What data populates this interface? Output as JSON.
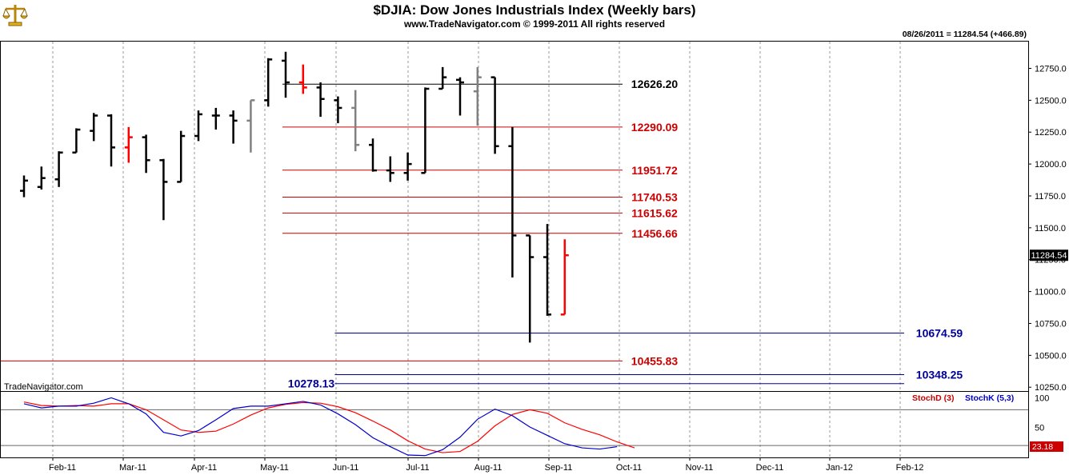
{
  "header": {
    "title": "$DJIA:  Dow Jones Industrials Index  (Weekly bars)",
    "copyright": "www.TradeNavigator.com © 1999-2011 All rights reserved",
    "status": "08/26/2011 = 11284.54 (+466.89)",
    "watermark": "TradeNavigator.com",
    "logo_icon": "scales-logo-icon"
  },
  "colors": {
    "up": "#000000",
    "down_red": "#ff0000",
    "flat_gray": "#808080",
    "resistance": "#cc0000",
    "support_blue": "#000099",
    "stoch_d": "#ff0000",
    "stoch_k": "#0000cc"
  },
  "chart_data": [
    {
      "type": "ohlc",
      "title": "$DJIA:  Dow Jones Industrials Index  (Weekly bars)",
      "x_tick_labels": [
        "Feb-11",
        "Mar-11",
        "Apr-11",
        "May-11",
        "Jun-11",
        "Jul-11",
        "Aug-11",
        "Sep-11",
        "Oct-11",
        "Nov-11",
        "Dec-11",
        "Jan-12",
        "Feb-12"
      ],
      "y_tick_labels": [
        "12750.0",
        "12500.0",
        "12250.0",
        "12000.0",
        "11750.0",
        "11500.0",
        "11250.0",
        "11000.0",
        "10750.0",
        "10500.0",
        "10250.0"
      ],
      "ylim": [
        10220,
        12960
      ],
      "last_price_label": "11284.54",
      "bars": [
        {
          "w": 0,
          "o": 11790,
          "h": 11910,
          "l": 11740,
          "c": 11870,
          "col": "up"
        },
        {
          "w": 1,
          "o": 11820,
          "h": 11980,
          "l": 11800,
          "c": 11890,
          "col": "up"
        },
        {
          "w": 2,
          "o": 11880,
          "h": 12100,
          "l": 11820,
          "c": 12090,
          "col": "up"
        },
        {
          "w": 3,
          "o": 12090,
          "h": 12280,
          "l": 12090,
          "c": 12270,
          "col": "up"
        },
        {
          "w": 4,
          "o": 12260,
          "h": 12400,
          "l": 12180,
          "c": 12380,
          "col": "up"
        },
        {
          "w": 5,
          "o": 12380,
          "h": 12390,
          "l": 11980,
          "c": 12130,
          "col": "up"
        },
        {
          "w": 6,
          "o": 12130,
          "h": 12290,
          "l": 12010,
          "c": 12210,
          "col": "down_red"
        },
        {
          "w": 7,
          "o": 12210,
          "h": 12230,
          "l": 11930,
          "c": 12030,
          "col": "up"
        },
        {
          "w": 8,
          "o": 12030,
          "h": 12040,
          "l": 11560,
          "c": 11860,
          "col": "up"
        },
        {
          "w": 9,
          "o": 11860,
          "h": 12260,
          "l": 11860,
          "c": 12220,
          "col": "up"
        },
        {
          "w": 10,
          "o": 12220,
          "h": 12420,
          "l": 12180,
          "c": 12390,
          "col": "up"
        },
        {
          "w": 11,
          "o": 12380,
          "h": 12440,
          "l": 12270,
          "c": 12380,
          "col": "up"
        },
        {
          "w": 12,
          "o": 12380,
          "h": 12420,
          "l": 12160,
          "c": 12340,
          "col": "up"
        },
        {
          "w": 13,
          "o": 12340,
          "h": 12500,
          "l": 12090,
          "c": 12500,
          "col": "flat_gray"
        },
        {
          "w": 14,
          "o": 12500,
          "h": 12830,
          "l": 12450,
          "c": 12820,
          "col": "up"
        },
        {
          "w": 15,
          "o": 12810,
          "h": 12880,
          "l": 12520,
          "c": 12640,
          "col": "up"
        },
        {
          "w": 16,
          "o": 12640,
          "h": 12780,
          "l": 12550,
          "c": 12600,
          "col": "down_red"
        },
        {
          "w": 17,
          "o": 12600,
          "h": 12640,
          "l": 12370,
          "c": 12510,
          "col": "up"
        },
        {
          "w": 18,
          "o": 12500,
          "h": 12530,
          "l": 12320,
          "c": 12440,
          "col": "up"
        },
        {
          "w": 19,
          "o": 12440,
          "h": 12580,
          "l": 12100,
          "c": 12150,
          "col": "flat_gray"
        },
        {
          "w": 20,
          "o": 12150,
          "h": 12200,
          "l": 11940,
          "c": 11950,
          "col": "up"
        },
        {
          "w": 21,
          "o": 11950,
          "h": 12060,
          "l": 11860,
          "c": 11930,
          "col": "up"
        },
        {
          "w": 22,
          "o": 11930,
          "h": 12090,
          "l": 11870,
          "c": 12000,
          "col": "up"
        },
        {
          "w": 23,
          "o": 11930,
          "h": 12600,
          "l": 11930,
          "c": 12590,
          "col": "up"
        },
        {
          "w": 24,
          "o": 12590,
          "h": 12760,
          "l": 12590,
          "c": 12680,
          "col": "up"
        },
        {
          "w": 25,
          "o": 12660,
          "h": 12680,
          "l": 12380,
          "c": 12640,
          "col": "up"
        },
        {
          "w": 26,
          "o": 12570,
          "h": 12760,
          "l": 12300,
          "c": 12680,
          "col": "flat_gray"
        },
        {
          "w": 27,
          "o": 12680,
          "h": 12680,
          "l": 12080,
          "c": 12140,
          "col": "up"
        },
        {
          "w": 28,
          "o": 12140,
          "h": 12290,
          "l": 11110,
          "c": 11440,
          "col": "up"
        },
        {
          "w": 29,
          "o": 11440,
          "h": 11440,
          "l": 10600,
          "c": 11270,
          "col": "up"
        },
        {
          "w": 30,
          "o": 11270,
          "h": 11530,
          "l": 10810,
          "c": 10820,
          "col": "up"
        },
        {
          "w": 31,
          "o": 10820,
          "h": 11410,
          "l": 10820,
          "c": 11284.54,
          "col": "down_red"
        }
      ]
    },
    {
      "type": "line",
      "series": [
        {
          "name": "StochD (3)",
          "color": "stoch_d",
          "values": [
            93,
            87,
            86,
            87,
            86,
            90,
            90,
            80,
            63,
            46,
            42,
            44,
            56,
            71,
            83,
            89,
            92,
            91,
            85,
            75,
            61,
            46,
            28,
            14,
            8,
            10,
            27,
            53,
            72,
            80,
            74,
            58,
            47,
            38,
            26,
            16
          ]
        },
        {
          "name": "StochK (5,3)",
          "color": "stoch_k",
          "values": [
            90,
            83,
            86,
            86,
            91,
            100,
            90,
            73,
            42,
            36,
            45,
            63,
            82,
            86,
            86,
            90,
            94,
            88,
            73,
            55,
            33,
            18,
            4,
            3,
            13,
            34,
            64,
            81,
            70,
            51,
            37,
            23,
            16,
            14,
            18
          ]
        }
      ],
      "y_tick_labels": [
        "100",
        "50"
      ],
      "last_value_label": "23.18",
      "ylim": [
        0,
        110
      ]
    }
  ],
  "levels": [
    {
      "value": 12626.2,
      "label": "12626.20",
      "color": "up",
      "start_week": 15,
      "label_side": "right-mid"
    },
    {
      "value": 12290.09,
      "label": "12290.09",
      "color": "resistance",
      "start_week": 15,
      "label_side": "right-mid"
    },
    {
      "value": 11951.72,
      "label": "11951.72",
      "color": "resistance",
      "start_week": 15,
      "label_side": "right-mid"
    },
    {
      "value": 11740.53,
      "label": "11740.53",
      "color": "resistance",
      "start_week": 15,
      "label_side": "right-mid"
    },
    {
      "value": 11615.62,
      "label": "11615.62",
      "color": "resistance",
      "start_week": 15,
      "label_side": "right-mid"
    },
    {
      "value": 11456.66,
      "label": "11456.66",
      "color": "resistance",
      "start_week": 15,
      "label_side": "right-mid"
    },
    {
      "value": 10674.59,
      "label": "10674.59",
      "color": "support_blue",
      "start_week": 18,
      "label_side": "right-far"
    },
    {
      "value": 10455.83,
      "label": "10455.83",
      "color": "resistance",
      "start_week": -1,
      "label_side": "right-mid"
    },
    {
      "value": 10348.25,
      "label": "10348.25",
      "color": "support_blue",
      "start_week": 18,
      "label_side": "right-far"
    },
    {
      "value": 10278.13,
      "label": "10278.13",
      "color": "support_blue",
      "start_week": 18,
      "label_side": "left"
    }
  ]
}
